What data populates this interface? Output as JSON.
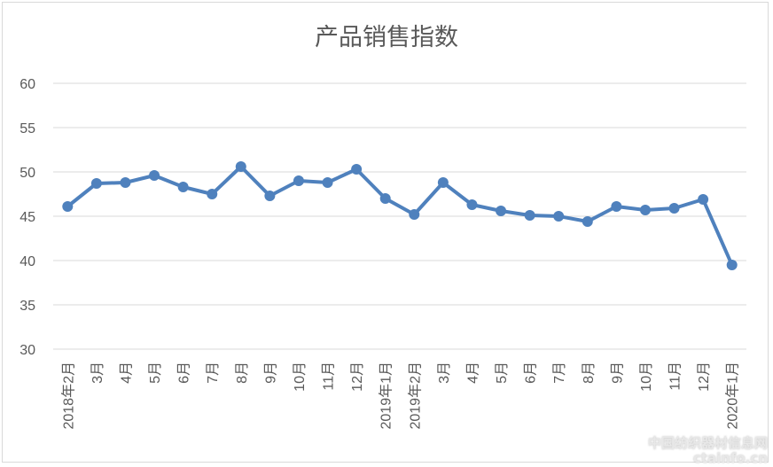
{
  "chart_data": {
    "type": "line",
    "title": "产品销售指数",
    "xlabel": "",
    "ylabel": "",
    "ylim": [
      30,
      60
    ],
    "yticks": [
      30,
      35,
      40,
      45,
      50,
      55,
      60
    ],
    "grid": true,
    "legend": "none",
    "categories": [
      "2018年2月",
      "3月",
      "4月",
      "5月",
      "6月",
      "7月",
      "8月",
      "9月",
      "10月",
      "11月",
      "12月",
      "2019年1月",
      "2019年2月",
      "3月",
      "4月",
      "5月",
      "6月",
      "7月",
      "8月",
      "9月",
      "10月",
      "11月",
      "12月",
      "2020年1月"
    ],
    "series": [
      {
        "values": [
          46.1,
          48.7,
          48.8,
          49.6,
          48.3,
          47.5,
          50.6,
          47.3,
          49.0,
          48.8,
          50.3,
          47.0,
          45.2,
          48.8,
          46.3,
          45.6,
          45.1,
          45.0,
          44.4,
          46.1,
          45.7,
          45.9,
          46.9,
          39.5
        ]
      }
    ],
    "color": "#4f81bd",
    "grid_color": "#d9d9d9"
  },
  "watermark": {
    "line1": "中国纺织器材信息网",
    "line2": "ctainfo.cn"
  }
}
